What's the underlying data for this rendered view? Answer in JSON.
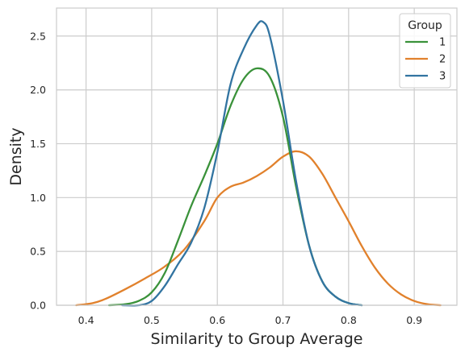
{
  "chart_data": {
    "type": "line",
    "xlabel": "Similarity to Group Average",
    "ylabel": "Density",
    "xlim": [
      0.355,
      0.965
    ],
    "ylim": [
      0,
      2.76
    ],
    "xticks": [
      0.4,
      0.5,
      0.6,
      0.7,
      0.8,
      0.9
    ],
    "xtick_labels": [
      "0.4",
      "0.5",
      "0.6",
      "0.7",
      "0.8",
      "0.9"
    ],
    "yticks": [
      0.0,
      0.5,
      1.0,
      1.5,
      2.0,
      2.5
    ],
    "ytick_labels": [
      "0.0",
      "0.5",
      "1.0",
      "1.5",
      "2.0",
      "2.5"
    ],
    "grid": true,
    "legend": {
      "title": "Group",
      "position": "top-right",
      "labels": [
        "1",
        "2",
        "3"
      ]
    },
    "series": [
      {
        "name": "1",
        "color": "#3a923a",
        "points": [
          [
            0.435,
            0.0
          ],
          [
            0.46,
            0.01
          ],
          [
            0.48,
            0.04
          ],
          [
            0.5,
            0.12
          ],
          [
            0.52,
            0.3
          ],
          [
            0.54,
            0.6
          ],
          [
            0.56,
            0.92
          ],
          [
            0.58,
            1.2
          ],
          [
            0.6,
            1.5
          ],
          [
            0.62,
            1.85
          ],
          [
            0.64,
            2.1
          ],
          [
            0.66,
            2.2
          ],
          [
            0.68,
            2.12
          ],
          [
            0.7,
            1.75
          ],
          [
            0.72,
            1.1
          ],
          [
            0.74,
            0.55
          ],
          [
            0.76,
            0.22
          ],
          [
            0.78,
            0.08
          ],
          [
            0.8,
            0.02
          ],
          [
            0.82,
            0.0
          ]
        ]
      },
      {
        "name": "2",
        "color": "#e1812c",
        "points": [
          [
            0.385,
            0.0
          ],
          [
            0.41,
            0.02
          ],
          [
            0.43,
            0.06
          ],
          [
            0.46,
            0.15
          ],
          [
            0.49,
            0.25
          ],
          [
            0.52,
            0.36
          ],
          [
            0.55,
            0.52
          ],
          [
            0.58,
            0.78
          ],
          [
            0.6,
            1.0
          ],
          [
            0.62,
            1.1
          ],
          [
            0.64,
            1.14
          ],
          [
            0.66,
            1.2
          ],
          [
            0.68,
            1.28
          ],
          [
            0.7,
            1.38
          ],
          [
            0.72,
            1.43
          ],
          [
            0.74,
            1.38
          ],
          [
            0.76,
            1.22
          ],
          [
            0.78,
            1.0
          ],
          [
            0.8,
            0.78
          ],
          [
            0.82,
            0.55
          ],
          [
            0.84,
            0.35
          ],
          [
            0.86,
            0.2
          ],
          [
            0.88,
            0.1
          ],
          [
            0.9,
            0.04
          ],
          [
            0.92,
            0.01
          ],
          [
            0.94,
            0.0
          ]
        ]
      },
      {
        "name": "3",
        "color": "#3274a1",
        "points": [
          [
            0.455,
            0.0
          ],
          [
            0.48,
            0.0
          ],
          [
            0.5,
            0.04
          ],
          [
            0.52,
            0.18
          ],
          [
            0.54,
            0.38
          ],
          [
            0.56,
            0.58
          ],
          [
            0.58,
            0.9
          ],
          [
            0.6,
            1.42
          ],
          [
            0.62,
            2.05
          ],
          [
            0.64,
            2.38
          ],
          [
            0.66,
            2.6
          ],
          [
            0.67,
            2.63
          ],
          [
            0.68,
            2.5
          ],
          [
            0.7,
            1.9
          ],
          [
            0.72,
            1.15
          ],
          [
            0.74,
            0.55
          ],
          [
            0.76,
            0.22
          ],
          [
            0.78,
            0.08
          ],
          [
            0.8,
            0.02
          ],
          [
            0.82,
            0.0
          ]
        ]
      }
    ]
  }
}
